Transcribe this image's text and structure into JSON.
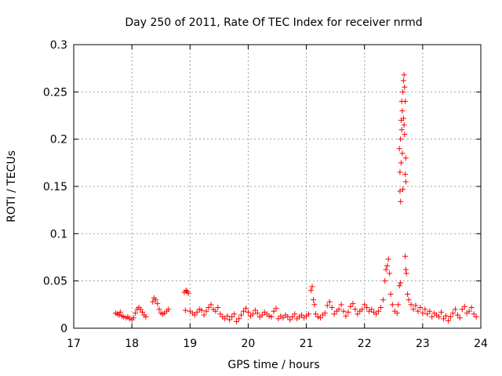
{
  "chart_data": {
    "type": "scatter",
    "title": "Day 250 of 2011, Rate Of TEC Index for receiver nrmd",
    "xlabel": "GPS time / hours",
    "ylabel": "ROTI / TECUs",
    "xlim": [
      17,
      24
    ],
    "ylim": [
      0,
      0.3
    ],
    "xticks": [
      17,
      18,
      19,
      20,
      21,
      22,
      23,
      24
    ],
    "yticks": [
      0,
      0.05,
      0.1,
      0.15,
      0.2,
      0.25,
      0.3
    ],
    "grid": true,
    "marker": "+",
    "series": [
      {
        "name": "ROTI",
        "color": "#ff0000",
        "points": [
          [
            17.72,
            0.016
          ],
          [
            17.75,
            0.015
          ],
          [
            17.78,
            0.014
          ],
          [
            17.8,
            0.017
          ],
          [
            17.83,
            0.013
          ],
          [
            17.86,
            0.012
          ],
          [
            17.9,
            0.011
          ],
          [
            17.93,
            0.012
          ],
          [
            17.96,
            0.01
          ],
          [
            18.0,
            0.009
          ],
          [
            18.03,
            0.011
          ],
          [
            18.06,
            0.016
          ],
          [
            18.09,
            0.02
          ],
          [
            18.12,
            0.022
          ],
          [
            18.15,
            0.02
          ],
          [
            18.18,
            0.017
          ],
          [
            18.21,
            0.014
          ],
          [
            18.24,
            0.012
          ],
          [
            18.36,
            0.028
          ],
          [
            18.38,
            0.032
          ],
          [
            18.41,
            0.03
          ],
          [
            18.44,
            0.026
          ],
          [
            18.47,
            0.02
          ],
          [
            18.5,
            0.016
          ],
          [
            18.53,
            0.015
          ],
          [
            18.56,
            0.016
          ],
          [
            18.6,
            0.018
          ],
          [
            18.63,
            0.02
          ],
          [
            18.9,
            0.038
          ],
          [
            18.93,
            0.04
          ],
          [
            18.95,
            0.039
          ],
          [
            18.97,
            0.037
          ],
          [
            18.92,
            0.019
          ],
          [
            19.0,
            0.018
          ],
          [
            19.04,
            0.016
          ],
          [
            19.08,
            0.014
          ],
          [
            19.12,
            0.017
          ],
          [
            19.16,
            0.02
          ],
          [
            19.2,
            0.019
          ],
          [
            19.24,
            0.014
          ],
          [
            19.28,
            0.018
          ],
          [
            19.32,
            0.022
          ],
          [
            19.36,
            0.025
          ],
          [
            19.4,
            0.02
          ],
          [
            19.44,
            0.018
          ],
          [
            19.48,
            0.022
          ],
          [
            19.52,
            0.015
          ],
          [
            19.56,
            0.012
          ],
          [
            19.6,
            0.01
          ],
          [
            19.64,
            0.013
          ],
          [
            19.68,
            0.009
          ],
          [
            19.72,
            0.012
          ],
          [
            19.76,
            0.015
          ],
          [
            19.8,
            0.007
          ],
          [
            19.84,
            0.01
          ],
          [
            19.88,
            0.014
          ],
          [
            19.92,
            0.018
          ],
          [
            19.96,
            0.021
          ],
          [
            20.0,
            0.017
          ],
          [
            20.04,
            0.013
          ],
          [
            20.08,
            0.015
          ],
          [
            20.12,
            0.019
          ],
          [
            20.16,
            0.016
          ],
          [
            20.2,
            0.012
          ],
          [
            20.24,
            0.014
          ],
          [
            20.28,
            0.017
          ],
          [
            20.32,
            0.015
          ],
          [
            20.36,
            0.013
          ],
          [
            20.4,
            0.012
          ],
          [
            20.44,
            0.018
          ],
          [
            20.48,
            0.021
          ],
          [
            20.52,
            0.01
          ],
          [
            20.56,
            0.013
          ],
          [
            20.6,
            0.011
          ],
          [
            20.64,
            0.014
          ],
          [
            20.68,
            0.012
          ],
          [
            20.72,
            0.009
          ],
          [
            20.76,
            0.012
          ],
          [
            20.8,
            0.015
          ],
          [
            20.84,
            0.01
          ],
          [
            20.88,
            0.012
          ],
          [
            20.92,
            0.014
          ],
          [
            20.96,
            0.011
          ],
          [
            21.0,
            0.013
          ],
          [
            21.04,
            0.015
          ],
          [
            21.08,
            0.04
          ],
          [
            21.1,
            0.044
          ],
          [
            21.12,
            0.03
          ],
          [
            21.14,
            0.025
          ],
          [
            21.16,
            0.015
          ],
          [
            21.2,
            0.012
          ],
          [
            21.24,
            0.011
          ],
          [
            21.28,
            0.014
          ],
          [
            21.32,
            0.016
          ],
          [
            21.36,
            0.024
          ],
          [
            21.4,
            0.028
          ],
          [
            21.44,
            0.022
          ],
          [
            21.48,
            0.015
          ],
          [
            21.52,
            0.018
          ],
          [
            21.56,
            0.02
          ],
          [
            21.6,
            0.025
          ],
          [
            21.64,
            0.018
          ],
          [
            21.68,
            0.013
          ],
          [
            21.72,
            0.017
          ],
          [
            21.76,
            0.023
          ],
          [
            21.8,
            0.026
          ],
          [
            21.84,
            0.02
          ],
          [
            21.88,
            0.015
          ],
          [
            21.92,
            0.018
          ],
          [
            21.96,
            0.02
          ],
          [
            22.0,
            0.025
          ],
          [
            22.04,
            0.022
          ],
          [
            22.08,
            0.018
          ],
          [
            22.12,
            0.02
          ],
          [
            22.16,
            0.017
          ],
          [
            22.2,
            0.015
          ],
          [
            22.24,
            0.018
          ],
          [
            22.28,
            0.022
          ],
          [
            22.32,
            0.03
          ],
          [
            22.35,
            0.05
          ],
          [
            22.37,
            0.062
          ],
          [
            22.39,
            0.066
          ],
          [
            22.41,
            0.073
          ],
          [
            22.43,
            0.058
          ],
          [
            22.45,
            0.036
          ],
          [
            22.48,
            0.025
          ],
          [
            22.52,
            0.018
          ],
          [
            22.56,
            0.016
          ],
          [
            22.58,
            0.025
          ],
          [
            22.6,
            0.045
          ],
          [
            22.62,
            0.048
          ],
          [
            22.6,
            0.19
          ],
          [
            22.61,
            0.165
          ],
          [
            22.61,
            0.145
          ],
          [
            22.62,
            0.134
          ],
          [
            22.62,
            0.2
          ],
          [
            22.63,
            0.22
          ],
          [
            22.63,
            0.175
          ],
          [
            22.64,
            0.24
          ],
          [
            22.64,
            0.21
          ],
          [
            22.65,
            0.23
          ],
          [
            22.65,
            0.185
          ],
          [
            22.66,
            0.25
          ],
          [
            22.66,
            0.147
          ],
          [
            22.67,
            0.262
          ],
          [
            22.67,
            0.222
          ],
          [
            22.68,
            0.268
          ],
          [
            22.68,
            0.215
          ],
          [
            22.69,
            0.255
          ],
          [
            22.69,
            0.205
          ],
          [
            22.7,
            0.24
          ],
          [
            22.7,
            0.163
          ],
          [
            22.71,
            0.18
          ],
          [
            22.71,
            0.155
          ],
          [
            22.7,
            0.076
          ],
          [
            22.71,
            0.062
          ],
          [
            22.72,
            0.058
          ],
          [
            22.74,
            0.036
          ],
          [
            22.76,
            0.03
          ],
          [
            22.8,
            0.025
          ],
          [
            22.84,
            0.02
          ],
          [
            22.88,
            0.024
          ],
          [
            22.92,
            0.018
          ],
          [
            22.96,
            0.022
          ],
          [
            23.0,
            0.016
          ],
          [
            23.04,
            0.02
          ],
          [
            23.08,
            0.015
          ],
          [
            23.12,
            0.018
          ],
          [
            23.16,
            0.012
          ],
          [
            23.2,
            0.016
          ],
          [
            23.24,
            0.014
          ],
          [
            23.28,
            0.012
          ],
          [
            23.32,
            0.017
          ],
          [
            23.36,
            0.01
          ],
          [
            23.4,
            0.013
          ],
          [
            23.44,
            0.008
          ],
          [
            23.48,
            0.012
          ],
          [
            23.52,
            0.016
          ],
          [
            23.56,
            0.02
          ],
          [
            23.6,
            0.014
          ],
          [
            23.64,
            0.011
          ],
          [
            23.68,
            0.02
          ],
          [
            23.72,
            0.023
          ],
          [
            23.76,
            0.016
          ],
          [
            23.8,
            0.018
          ],
          [
            23.84,
            0.022
          ],
          [
            23.88,
            0.015
          ],
          [
            23.92,
            0.012
          ]
        ]
      }
    ]
  }
}
